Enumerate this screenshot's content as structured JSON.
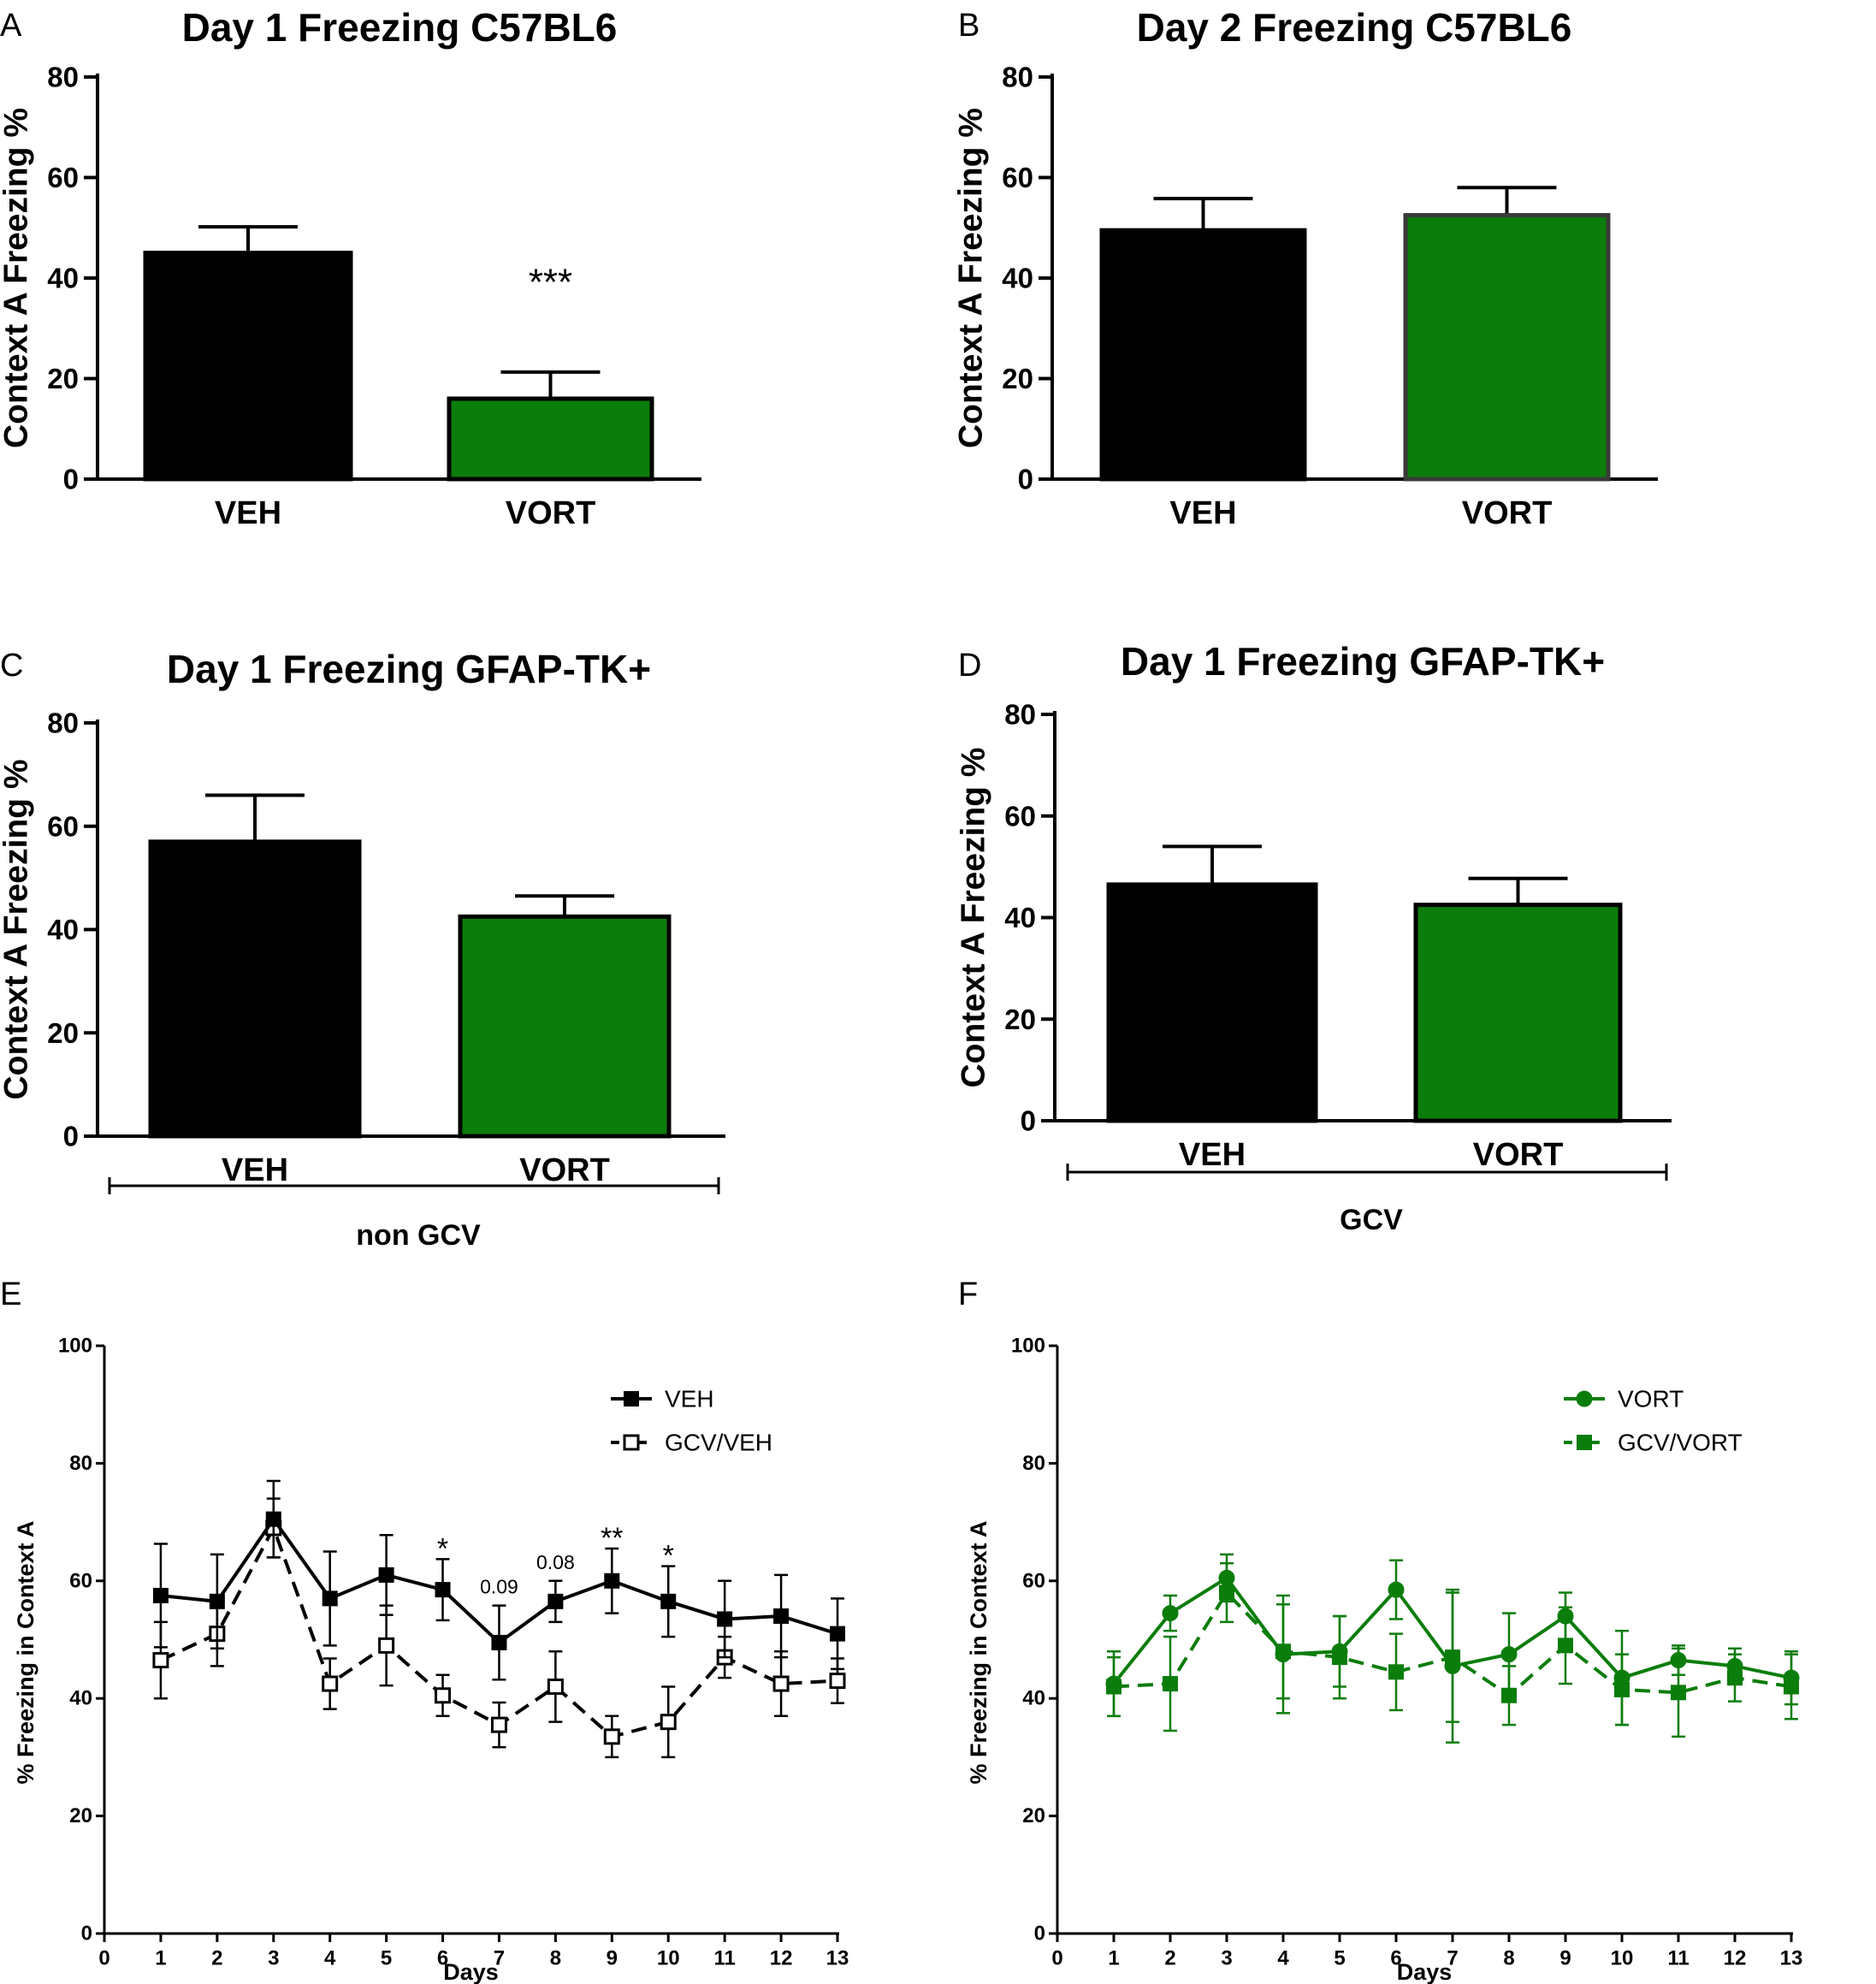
{
  "figure": {
    "caption_letters": [
      "A",
      "B",
      "C",
      "D",
      "E",
      "F"
    ]
  },
  "colors": {
    "black": "#000000",
    "green": "#0b7d0b",
    "green_edge": "#000000",
    "gray_edge": "#3a3a3a"
  },
  "chart_data": [
    {
      "id": "A",
      "type": "bar",
      "panel_label": "A",
      "title": "Day 1 Freezing C57BL6",
      "xlabel": "",
      "ylabel": "Context A Freezing %",
      "ylim": [
        0,
        80
      ],
      "yticks": [
        0,
        20,
        40,
        60,
        80
      ],
      "categories": [
        "VEH",
        "VORT"
      ],
      "values": [
        45,
        16
      ],
      "errors": [
        5.2,
        5.3
      ],
      "bar_colors": [
        "#000000",
        "#0b7d0b"
      ],
      "annotations": [
        {
          "category": "VORT",
          "text": "***"
        }
      ],
      "group_label": ""
    },
    {
      "id": "B",
      "type": "bar",
      "panel_label": "B",
      "title": "Day 2 Freezing C57BL6",
      "xlabel": "",
      "ylabel": "Context A Freezing %",
      "ylim": [
        0,
        80
      ],
      "yticks": [
        0,
        20,
        40,
        60,
        80
      ],
      "categories": [
        "VEH",
        "VORT"
      ],
      "values": [
        49.5,
        52.5
      ],
      "errors": [
        6.3,
        5.5
      ],
      "bar_colors": [
        "#000000",
        "#0b7d0b"
      ],
      "annotations": [],
      "group_label": ""
    },
    {
      "id": "C",
      "type": "bar",
      "panel_label": "C",
      "title": "Day 1 Freezing GFAP-TK+",
      "xlabel": "",
      "ylabel": "Context A Freezing %",
      "ylim": [
        0,
        80
      ],
      "yticks": [
        0,
        20,
        40,
        60,
        80
      ],
      "categories": [
        "VEH",
        "VORT"
      ],
      "values": [
        57,
        42.5
      ],
      "errors": [
        9,
        4
      ],
      "bar_colors": [
        "#000000",
        "#0b7d0b"
      ],
      "annotations": [],
      "group_label": "non GCV"
    },
    {
      "id": "D",
      "type": "bar",
      "panel_label": "D",
      "title": "Day 1 Freezing GFAP-TK+",
      "xlabel": "",
      "ylabel": "Context A Freezing %",
      "ylim": [
        0,
        80
      ],
      "yticks": [
        0,
        20,
        40,
        60,
        80
      ],
      "categories": [
        "VEH",
        "VORT"
      ],
      "values": [
        46.5,
        42.5
      ],
      "errors": [
        7.5,
        5.2
      ],
      "bar_colors": [
        "#000000",
        "#0b7d0b"
      ],
      "annotations": [],
      "group_label": "GCV"
    },
    {
      "id": "E",
      "type": "line",
      "panel_label": "E",
      "title": "",
      "xlabel": "Days",
      "ylabel": "% Freezing in Context A",
      "xlim": [
        0,
        13
      ],
      "xticks": [
        0,
        1,
        2,
        3,
        4,
        5,
        6,
        7,
        8,
        9,
        10,
        11,
        12,
        13
      ],
      "ylim": [
        0,
        100
      ],
      "yticks": [
        0,
        20,
        40,
        60,
        80,
        100
      ],
      "x": [
        1,
        2,
        3,
        4,
        5,
        6,
        7,
        8,
        9,
        10,
        11,
        12,
        13
      ],
      "series": [
        {
          "name": "VEH",
          "color": "#000000",
          "dashed": false,
          "marker": "square-filled",
          "values": [
            57.5,
            56.5,
            70.5,
            57,
            61,
            58.5,
            49.5,
            56.5,
            60,
            56.5,
            53.5,
            54,
            51
          ],
          "errors": [
            8.8,
            8,
            6.5,
            8,
            6.8,
            5.2,
            6.3,
            3.5,
            5.5,
            6,
            6.5,
            7,
            6
          ]
        },
        {
          "name": "GCV/VEH",
          "color": "#000000",
          "dashed": true,
          "marker": "square-open",
          "values": [
            46.5,
            51,
            69,
            42.5,
            49,
            40.5,
            35.5,
            42,
            33.5,
            36,
            47,
            42.5,
            43
          ],
          "errors": [
            6.5,
            5.5,
            5,
            4.3,
            6.8,
            3.5,
            3.8,
            6,
            3.5,
            6,
            3.5,
            5.5,
            3.8
          ]
        }
      ],
      "annotations": [
        {
          "x": 6,
          "text": "*"
        },
        {
          "x": 7,
          "text": "0.09"
        },
        {
          "x": 8,
          "text": "0.08"
        },
        {
          "x": 9,
          "text": "**"
        },
        {
          "x": 10,
          "text": "*"
        }
      ],
      "legend_position": "top-right"
    },
    {
      "id": "F",
      "type": "line",
      "panel_label": "F",
      "title": "",
      "xlabel": "Days",
      "ylabel": "% Freezing in Context A",
      "xlim": [
        0,
        13
      ],
      "xticks": [
        0,
        1,
        2,
        3,
        4,
        5,
        6,
        7,
        8,
        9,
        10,
        11,
        12,
        13
      ],
      "ylim": [
        0,
        100
      ],
      "yticks": [
        0,
        20,
        40,
        60,
        80,
        100
      ],
      "x": [
        1,
        2,
        3,
        4,
        5,
        6,
        7,
        8,
        9,
        10,
        11,
        12,
        13
      ],
      "series": [
        {
          "name": "VORT",
          "color": "#0b7d0b",
          "dashed": false,
          "marker": "circle-filled",
          "values": [
            42.5,
            54.5,
            60.5,
            47.5,
            48,
            58.5,
            45.5,
            47.5,
            54,
            43.5,
            46.5,
            45.5,
            43.5
          ],
          "errors": [
            5.5,
            3,
            4,
            10,
            6,
            5,
            13,
            7,
            4,
            8,
            2.5,
            3,
            4.5
          ]
        },
        {
          "name": "GCV/VORT",
          "color": "#0b7d0b",
          "dashed": true,
          "marker": "square-filled",
          "values": [
            42,
            42.5,
            58,
            48,
            47,
            44.5,
            47,
            40.5,
            49,
            41.5,
            41,
            43.5,
            42
          ],
          "errors": [
            5,
            8,
            5,
            8,
            7,
            6.5,
            11,
            5,
            6.5,
            6,
            7.5,
            4,
            5.5
          ]
        }
      ],
      "annotations": [],
      "legend_position": "top-right"
    }
  ]
}
